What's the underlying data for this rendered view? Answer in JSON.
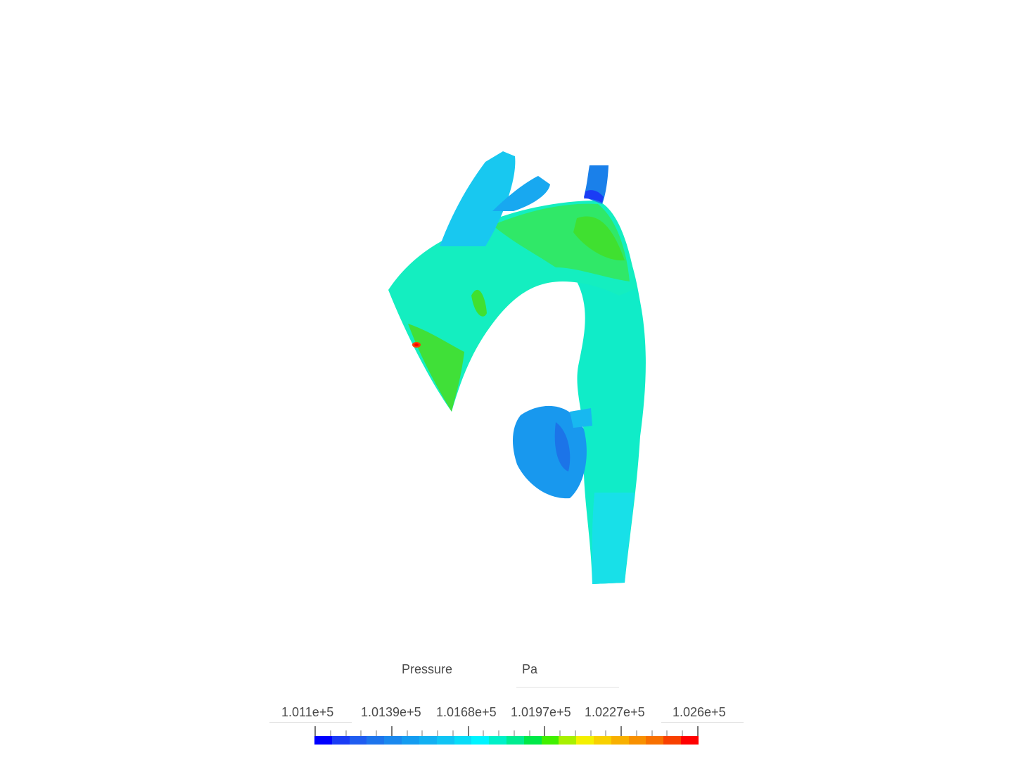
{
  "chart_data": {
    "type": "heatmap",
    "title": "Pressure",
    "unit": "Pa",
    "colormap": [
      "#0000ff",
      "#1a3cf5",
      "#1f5cf0",
      "#1d74ec",
      "#1a88ee",
      "#149cf0",
      "#12b0f2",
      "#10c4f4",
      "#08dcf8",
      "#00f4ff",
      "#00f0c8",
      "#00ec90",
      "#00e848",
      "#40f000",
      "#a8f000",
      "#f4f000",
      "#f8d000",
      "#f8b000",
      "#f89000",
      "#f87000",
      "#f84000",
      "#ff0000"
    ],
    "range": [
      101110,
      102600
    ],
    "tick_labels": [
      "1.011e+5",
      "1.0139e+5",
      "1.0168e+5",
      "1.0197e+5",
      "1.0227e+5",
      "1.026e+5"
    ],
    "minor_ticks_per_interval": 4
  }
}
